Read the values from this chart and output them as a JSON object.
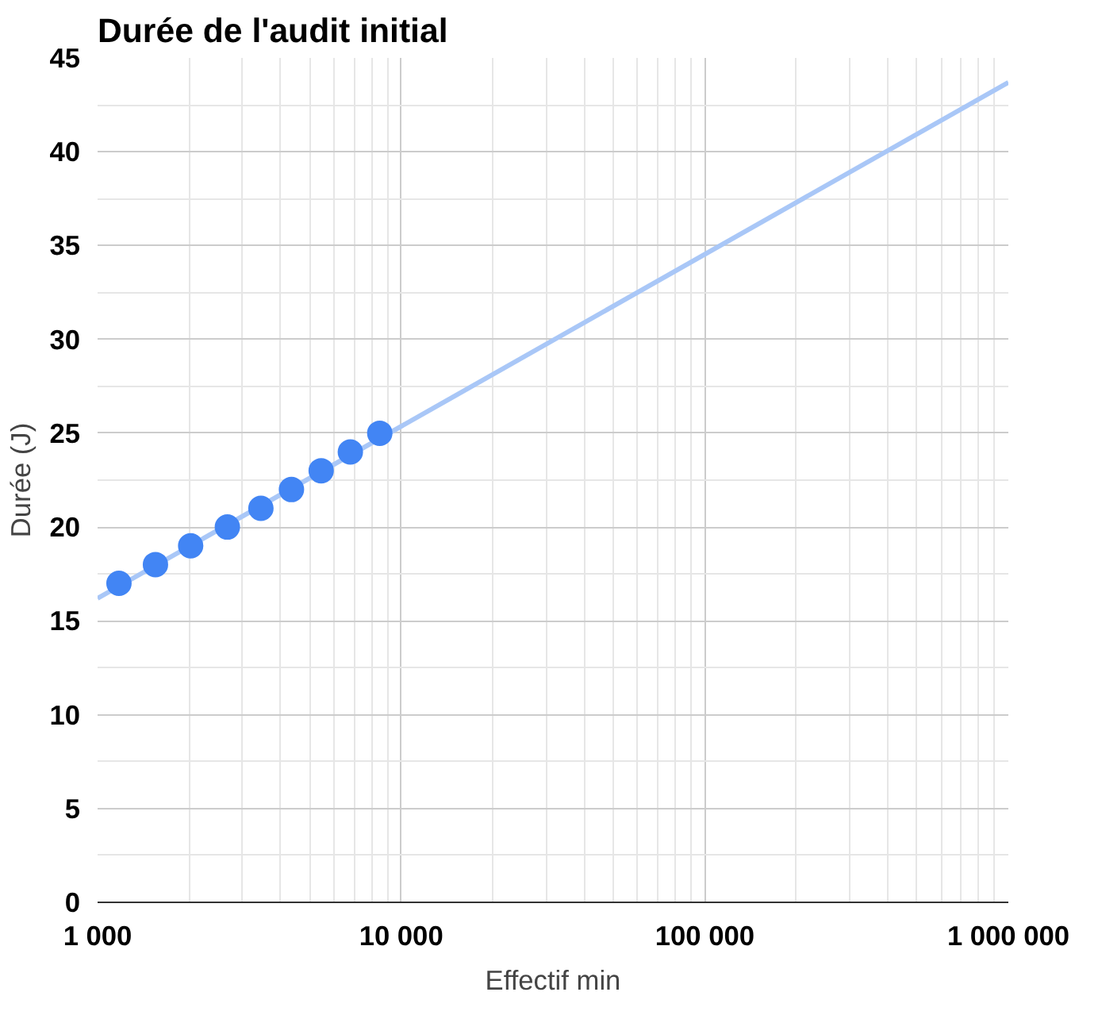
{
  "chart_data": {
    "type": "scatter",
    "title": "Durée de l'audit initial",
    "xlabel": "Effectif min",
    "ylabel": "Durée (J)",
    "x": [
      1176,
      1551,
      2026,
      2676,
      3451,
      4351,
      5451,
      6801,
      8501
    ],
    "series": [
      {
        "color": "#4285f4",
        "marker": "circle",
        "values": [
          17,
          18,
          19,
          20,
          21,
          22,
          23,
          24,
          25
        ]
      },
      {
        "type": "line",
        "color": "#a9c7f7",
        "x": [
          1000,
          1000000
        ],
        "values": [
          16.2,
          43.7
        ]
      }
    ],
    "log": "x",
    "xlim": [
      1000,
      1000000
    ],
    "xticks": [
      {
        "value": 1000,
        "label": "1 000"
      },
      {
        "value": 10000,
        "label": "10 000"
      },
      {
        "value": 100000,
        "label": "100 000"
      },
      {
        "value": 1000000,
        "label": "1 000 000"
      }
    ],
    "ylim": [
      0,
      45
    ],
    "yticks": [
      0,
      5,
      10,
      15,
      20,
      25,
      30,
      35,
      40,
      45
    ],
    "grid": true
  }
}
